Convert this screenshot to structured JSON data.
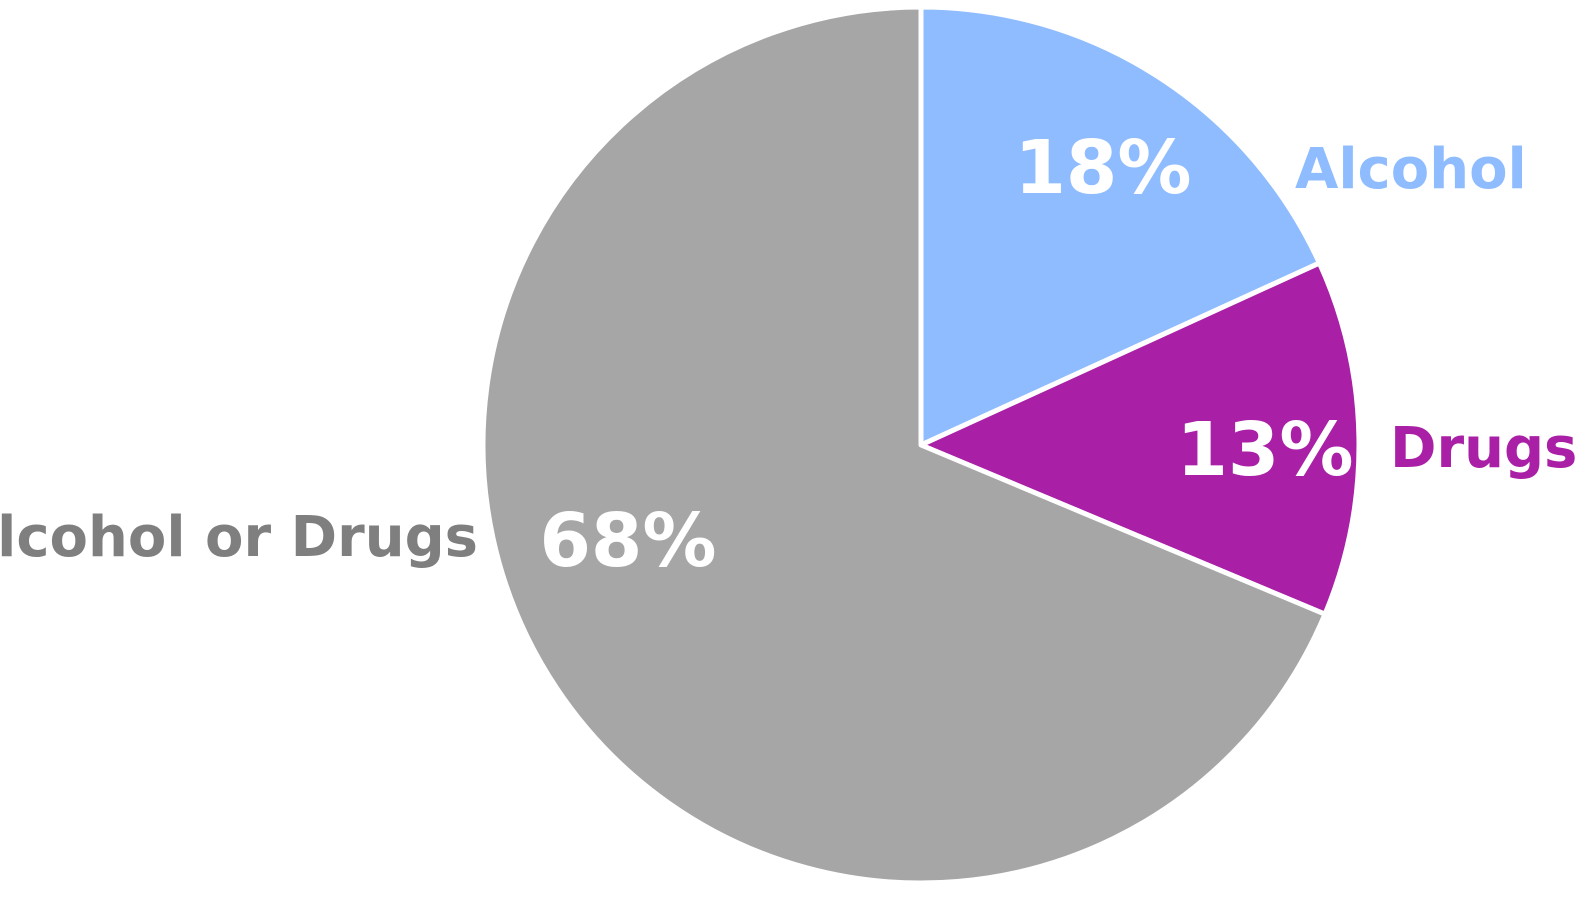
{
  "chart_data": {
    "type": "pie",
    "slices": [
      {
        "name": "Alcohol",
        "value": 18,
        "label": "18%",
        "color": "#8fbcff"
      },
      {
        "name": "Drugs",
        "value": 13,
        "label": "13%",
        "color": "#a91fa6"
      },
      {
        "name": "No Alcohol or Drugs",
        "value": 68,
        "label": "68%",
        "color": "#a6a6a6"
      }
    ],
    "start_angle": "12 o'clock",
    "direction": "clockwise",
    "slice_border_color": "#ffffff",
    "legend": "none",
    "label_text_color": "#ffffff",
    "category_label_color_gray": "#7f7f7f"
  }
}
